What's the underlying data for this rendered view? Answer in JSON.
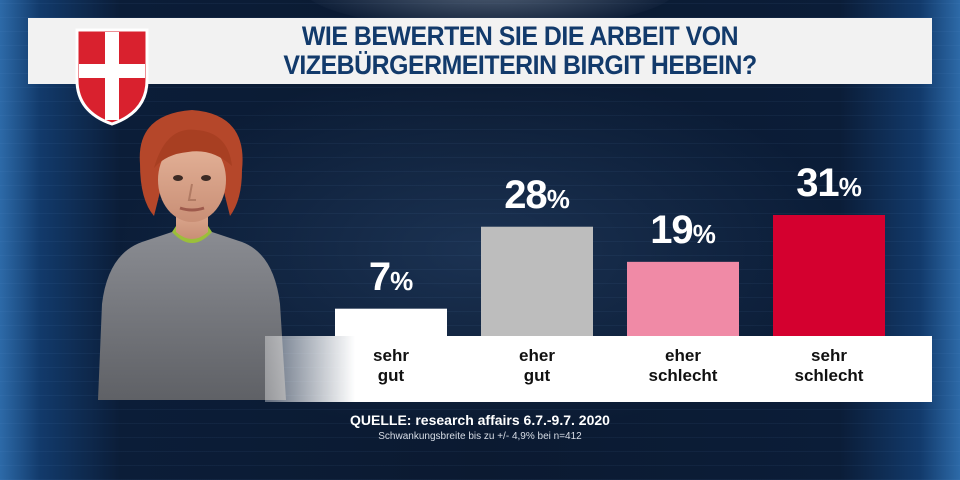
{
  "colors": {
    "title_text": "#123a6b",
    "bar_sehr_gut": "#ffffff",
    "bar_eher_gut": "#bdbdbd",
    "bar_eher_schlecht": "#f08aa6",
    "bar_sehr_schlecht": "#d4002f"
  },
  "chart_data": {
    "type": "bar",
    "title": "WIE BEWERTEN SIE DIE ARBEIT VON VIZEBÜRGERMEITERIN BIRGIT HEBEIN?",
    "title_lines": [
      "WIE BEWERTEN SIE DIE ARBEIT VON",
      "VIZEBÜRGERMEITERIN BIRGIT HEBEIN?"
    ],
    "categories": [
      {
        "line1": "sehr",
        "line2": "gut"
      },
      {
        "line1": "eher",
        "line2": "gut"
      },
      {
        "line1": "eher",
        "line2": "schlecht"
      },
      {
        "line1": "sehr",
        "line2": "schlecht"
      }
    ],
    "values": [
      7,
      28,
      19,
      31
    ],
    "value_labels": [
      {
        "num": "7",
        "pct": "%"
      },
      {
        "num": "28",
        "pct": "%"
      },
      {
        "num": "19",
        "pct": "%"
      },
      {
        "num": "31",
        "pct": "%"
      }
    ],
    "unit": "%",
    "xlabel": "",
    "ylabel": "",
    "ylim": [
      0,
      31
    ],
    "grid": false
  },
  "source": {
    "line": "QUELLE: research affairs 6.7.-9.7. 2020",
    "note": "Schwankungsbreite bis zu +/- 4,9% bei n=412"
  },
  "icons": {
    "coat_of_arms": "vienna-coat-of-arms-icon",
    "person": "person-photo"
  }
}
